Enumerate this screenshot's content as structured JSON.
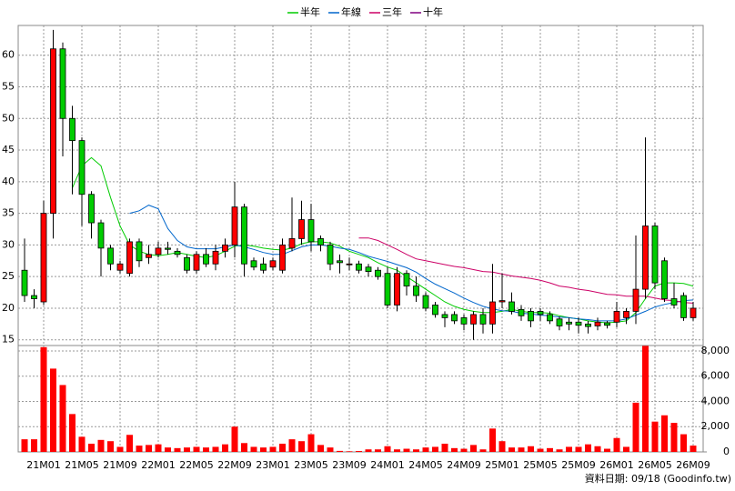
{
  "chart_data": {
    "type": "candlestick",
    "footer": "資料日期: 09/18 (Goodinfo.tw)",
    "categories": [
      null,
      null,
      "21M01",
      null,
      null,
      null,
      "21M05",
      null,
      null,
      null,
      "21M09",
      null,
      null,
      null,
      "22M01",
      null,
      null,
      null,
      "22M05",
      null,
      null,
      null,
      "22M09",
      null,
      null,
      null,
      "23M01",
      null,
      null,
      null,
      "23M05",
      null,
      null,
      null,
      "23M09",
      null,
      null,
      null,
      "24M01",
      null,
      null,
      null,
      "24M05",
      null,
      null,
      null,
      "24M09",
      null,
      null,
      null,
      "25M01",
      null,
      null,
      null,
      "25M05",
      null,
      null,
      null,
      "25M09",
      null,
      null,
      null,
      "26M01",
      null,
      null,
      null,
      "26M05",
      null,
      null,
      null,
      "26M09"
    ],
    "open": [
      26,
      22,
      21,
      35,
      61,
      50,
      46.5,
      38,
      33.5,
      29.5,
      26,
      25.5,
      30.5,
      28,
      28.5,
      29.5,
      29,
      28,
      26,
      28.5,
      27,
      29,
      30,
      36,
      27.5,
      27,
      26.5,
      26,
      29.5,
      31,
      34,
      31,
      30,
      27.5,
      27,
      27,
      26.5,
      26,
      25.5,
      20.5,
      25.5,
      23.5,
      22,
      20.5,
      19,
      19,
      18.5,
      17.5,
      19,
      17.5,
      21,
      21,
      19.8,
      19.5,
      19.5,
      19,
      18.3,
      17.8,
      17.8,
      17.5,
      17.2,
      17.7,
      17.8,
      18.5,
      19.5,
      23,
      33,
      27.5,
      21.5,
      22,
      18.5
    ],
    "high": [
      31,
      23,
      37,
      64,
      62,
      52,
      47,
      38.5,
      34,
      30,
      27.5,
      31,
      31,
      30,
      30.5,
      30.5,
      29.5,
      28.5,
      29,
      29.5,
      30,
      31,
      40,
      36.5,
      28,
      28,
      28,
      31,
      37.5,
      37,
      36.5,
      31.5,
      30.5,
      28.5,
      28,
      27.5,
      27,
      26.5,
      26.5,
      26.5,
      26,
      25,
      22.5,
      21,
      19.5,
      19.5,
      19,
      19.5,
      20,
      27,
      25.5,
      22.5,
      20.5,
      20,
      20,
      19.5,
      18.7,
      18.5,
      18.5,
      18,
      18.5,
      18,
      21,
      20,
      31.5,
      47,
      33.5,
      28,
      24,
      22.5,
      21
    ],
    "low": [
      21,
      20,
      20.5,
      31,
      44,
      38,
      33,
      31,
      25,
      26,
      25.5,
      25,
      26.5,
      27,
      28,
      28.5,
      28,
      25.5,
      25.5,
      26.5,
      26,
      28,
      28,
      25,
      26,
      25.5,
      26,
      25.5,
      29,
      30,
      29,
      29,
      26,
      25.5,
      26,
      25.5,
      25,
      24.5,
      20,
      19.5,
      22,
      21,
      19.5,
      18.5,
      17,
      17.5,
      16.5,
      15,
      16,
      16,
      20,
      19,
      18,
      17,
      18,
      17.5,
      16.5,
      16.5,
      16,
      16,
      16.5,
      16.8,
      17,
      17.5,
      17.5,
      21.5,
      23,
      21,
      20,
      18,
      18
    ],
    "close": [
      22,
      21.5,
      35,
      61,
      50,
      46.5,
      38,
      33.5,
      29.5,
      27,
      27,
      30.5,
      27.5,
      28.5,
      29.5,
      29.3,
      28.5,
      26,
      28.5,
      27,
      29,
      30,
      36,
      27,
      26.5,
      26,
      27.5,
      30,
      31,
      34,
      30.5,
      30,
      27,
      27.2,
      27,
      26,
      25.8,
      25,
      20.5,
      25.5,
      23.5,
      22,
      20,
      19,
      18.5,
      18,
      17.5,
      19,
      17.5,
      21,
      21.2,
      19.5,
      18.8,
      18,
      19,
      18,
      17.2,
      17.5,
      17.3,
      17.1,
      17.8,
      17.3,
      19.5,
      19.5,
      23,
      33,
      24,
      21.5,
      20.5,
      18.5,
      20
    ],
    "up_color": "#ff0000",
    "down_color": "#00cc00",
    "ylim": [
      14.1,
      64.7
    ],
    "yticks": [
      15,
      20,
      25,
      30,
      35,
      40,
      45,
      50,
      55,
      60
    ],
    "grid": true,
    "series": [
      {
        "name": "半年",
        "color": "#00cc00",
        "values": [
          null,
          null,
          null,
          null,
          null,
          39,
          42.5,
          43.8,
          42.5,
          37.5,
          33,
          30,
          29,
          28.5,
          28.3,
          28.5,
          28.8,
          28.5,
          28.2,
          28,
          28.3,
          29,
          29.8,
          30,
          29.8,
          29.5,
          29.3,
          29.2,
          29.5,
          30.2,
          30.5,
          30.5,
          30.3,
          29.8,
          29,
          28.5,
          28,
          27.2,
          26.5,
          26,
          25,
          24,
          23,
          22,
          21,
          20.3,
          19.8,
          19.5,
          19.3,
          19.3,
          19.5,
          19.8,
          19.5,
          19.3,
          19.3,
          19.2,
          18.8,
          18.5,
          18.3,
          18,
          17.8,
          17.7,
          17.8,
          18,
          19.3,
          21.5,
          23.5,
          24,
          24,
          23.9,
          23.5
        ]
      },
      {
        "name": "年線",
        "color": "#0066cc",
        "values": [
          null,
          null,
          null,
          null,
          null,
          null,
          null,
          null,
          null,
          null,
          null,
          35,
          35.4,
          36.3,
          35.7,
          32.6,
          30.7,
          29.7,
          29.4,
          29.4,
          29.4,
          29.7,
          30,
          29.7,
          29.3,
          28.8,
          28.5,
          28.5,
          29.1,
          29.7,
          30,
          30,
          29.8,
          29.5,
          29.3,
          28.8,
          28.2,
          27.8,
          27.4,
          26.9,
          26.4,
          25.7,
          24.7,
          23.8,
          23.1,
          22.4,
          21.6,
          20.9,
          20.3,
          19.9,
          19.6,
          19.5,
          19.2,
          19.1,
          18.9,
          18.8,
          18.6,
          18.5,
          18.3,
          18.2,
          18,
          18,
          18,
          18.3,
          18.9,
          19.5,
          20.2,
          20.6,
          20.9,
          21.2,
          21.3
        ]
      },
      {
        "name": "三年",
        "color": "#cc0066",
        "values": [
          null,
          null,
          null,
          null,
          null,
          null,
          null,
          null,
          null,
          null,
          null,
          null,
          null,
          null,
          null,
          null,
          null,
          null,
          null,
          null,
          null,
          null,
          null,
          null,
          null,
          null,
          null,
          null,
          null,
          null,
          null,
          null,
          null,
          null,
          null,
          31.1,
          31.1,
          30.7,
          30,
          29.3,
          28.5,
          27.8,
          27.5,
          27.2,
          26.9,
          26.6,
          26.4,
          26.1,
          25.8,
          25.7,
          25.4,
          25.1,
          24.9,
          24.7,
          24.4,
          24,
          23.5,
          23.3,
          23,
          22.8,
          22.5,
          22.2,
          22.1,
          21.9,
          21.9,
          21.9,
          21.6,
          21.3,
          21.2,
          20.9,
          20.8
        ]
      },
      {
        "name": "十年",
        "color": "#800080",
        "values": [
          null,
          null,
          null,
          null,
          null,
          null,
          null,
          null,
          null,
          null,
          null,
          null,
          null,
          null,
          null,
          null,
          null,
          null,
          null,
          null,
          null,
          null,
          null,
          null,
          null,
          null,
          null,
          null,
          null,
          null,
          null,
          null,
          null,
          null,
          null,
          null,
          null,
          null,
          null,
          null,
          null,
          null,
          null,
          null,
          null,
          null,
          null,
          null,
          null,
          null,
          null,
          null,
          null,
          null,
          null,
          null,
          null,
          null,
          null,
          null,
          null,
          null,
          null,
          null,
          null,
          null,
          null,
          null,
          null,
          null,
          null
        ]
      }
    ],
    "volume": {
      "color": "#ff0000",
      "values": [
        1000,
        1000,
        8300,
        6600,
        5300,
        3000,
        1200,
        650,
        950,
        850,
        400,
        1350,
        500,
        550,
        600,
        350,
        300,
        350,
        400,
        350,
        400,
        600,
        2000,
        700,
        400,
        350,
        400,
        650,
        1000,
        850,
        1400,
        550,
        350,
        80,
        50,
        70,
        200,
        200,
        450,
        200,
        250,
        200,
        350,
        400,
        650,
        300,
        250,
        550,
        200,
        1850,
        850,
        350,
        350,
        450,
        250,
        300,
        200,
        400,
        400,
        600,
        450,
        250,
        1100,
        400,
        3900,
        8400,
        2400,
        2900,
        2300,
        1400,
        500
      ],
      "ylim": [
        0,
        8430
      ],
      "yticks": [
        0,
        {
          "value": 2000,
          "label": "2,000"
        },
        {
          "value": 4000,
          "label": "4,000"
        },
        {
          "value": 6000,
          "label": "6,000"
        },
        {
          "value": 8000,
          "label": "8,000"
        }
      ]
    }
  }
}
